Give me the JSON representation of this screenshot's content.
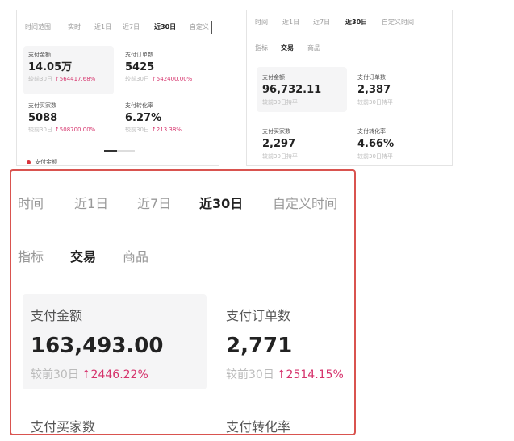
{
  "panels": [
    {
      "tabs": [
        "时间范围",
        "实时",
        "近1日",
        "近7日",
        "近30日",
        "自定义"
      ],
      "metrics": [
        {
          "label": "支付金额",
          "value": "14.05万",
          "compare": "较前30日",
          "change": "↑564417.68%"
        },
        {
          "label": "支付订单数",
          "value": "5425",
          "compare": "较前30日",
          "change": "↑542400.00%"
        },
        {
          "label": "支付买家数",
          "value": "5088",
          "compare": "较前30日",
          "change": "↑508700.00%"
        },
        {
          "label": "支付转化率",
          "value": "6.27%",
          "compare": "较前30日",
          "change": "↑213.38%"
        }
      ],
      "legend": "支付金额"
    },
    {
      "tabs": [
        "时间",
        "近1日",
        "近7日",
        "近30日",
        "自定义时间"
      ],
      "subtabs": [
        "指标",
        "交易",
        "商品"
      ],
      "metrics": [
        {
          "label": "支付金额",
          "value": "96,732.11",
          "compare": "较前30日持平"
        },
        {
          "label": "支付订单数",
          "value": "2,387",
          "compare": "较前30日持平"
        },
        {
          "label": "支付买家数",
          "value": "2,297",
          "compare": "较前30日持平"
        },
        {
          "label": "支付转化率",
          "value": "4.66%",
          "compare": "较前30日持平"
        }
      ]
    },
    {
      "tabs": [
        "时间",
        "近1日",
        "近7日",
        "近30日",
        "自定义时间"
      ],
      "subtabs": [
        "指标",
        "交易",
        "商品"
      ],
      "metrics": [
        {
          "label": "支付金额",
          "value": "163,493.00",
          "compare": "较前30日",
          "change": "↑2446.22%"
        },
        {
          "label": "支付订单数",
          "value": "2,771",
          "compare": "较前30日",
          "change": "↑2514.15%"
        },
        {
          "label": "支付买家数"
        },
        {
          "label": "支付转化率"
        }
      ]
    }
  ]
}
